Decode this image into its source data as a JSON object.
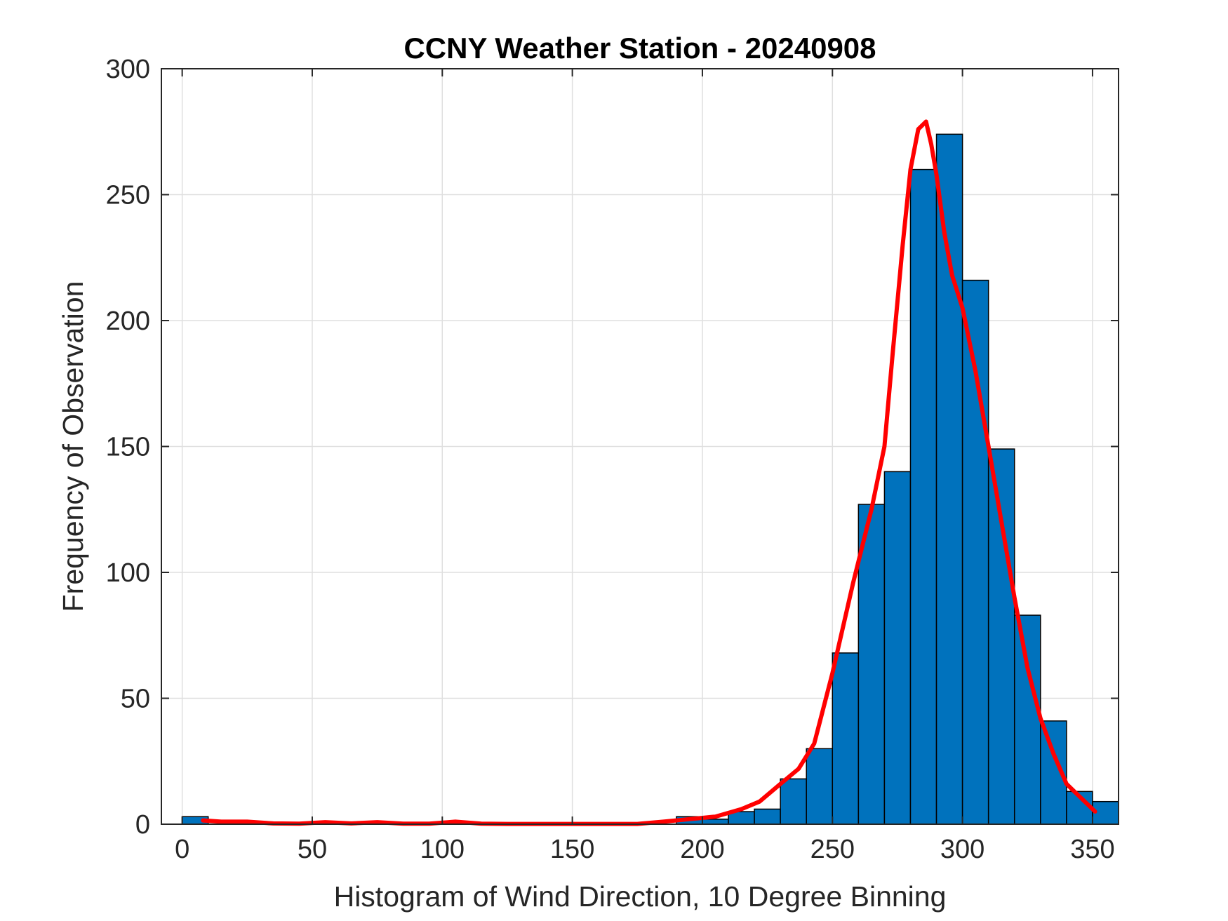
{
  "chart_data": {
    "type": "bar",
    "title": "CCNY Weather Station - 20240908",
    "xlabel": "Histogram of Wind Direction, 10 Degree Binning",
    "ylabel": "Frequency of Observation",
    "xlim": [
      -8,
      360
    ],
    "ylim": [
      0,
      300
    ],
    "xticks": [
      0,
      50,
      100,
      150,
      200,
      250,
      300,
      350
    ],
    "yticks": [
      0,
      50,
      100,
      150,
      200,
      250,
      300
    ],
    "grid": true,
    "bin_width": 10,
    "bar_color": "#0072BD",
    "bar_edge_color": "#000000",
    "bins": [
      {
        "start": 0,
        "count": 3
      },
      {
        "start": 10,
        "count": 0
      },
      {
        "start": 20,
        "count": 0
      },
      {
        "start": 30,
        "count": 0
      },
      {
        "start": 40,
        "count": 0
      },
      {
        "start": 50,
        "count": 0
      },
      {
        "start": 60,
        "count": 0
      },
      {
        "start": 70,
        "count": 0
      },
      {
        "start": 80,
        "count": 0
      },
      {
        "start": 90,
        "count": 0
      },
      {
        "start": 100,
        "count": 0
      },
      {
        "start": 110,
        "count": 0
      },
      {
        "start": 120,
        "count": 0
      },
      {
        "start": 130,
        "count": 0
      },
      {
        "start": 140,
        "count": 0
      },
      {
        "start": 150,
        "count": 0
      },
      {
        "start": 160,
        "count": 0
      },
      {
        "start": 170,
        "count": 0
      },
      {
        "start": 180,
        "count": 0
      },
      {
        "start": 190,
        "count": 3
      },
      {
        "start": 200,
        "count": 2
      },
      {
        "start": 210,
        "count": 5
      },
      {
        "start": 220,
        "count": 6
      },
      {
        "start": 230,
        "count": 18
      },
      {
        "start": 240,
        "count": 30
      },
      {
        "start": 250,
        "count": 68
      },
      {
        "start": 260,
        "count": 127
      },
      {
        "start": 270,
        "count": 140
      },
      {
        "start": 280,
        "count": 260
      },
      {
        "start": 290,
        "count": 274
      },
      {
        "start": 300,
        "count": 216
      },
      {
        "start": 310,
        "count": 149
      },
      {
        "start": 320,
        "count": 83
      },
      {
        "start": 330,
        "count": 41
      },
      {
        "start": 340,
        "count": 13
      },
      {
        "start": 350,
        "count": 9
      }
    ],
    "fit_curve": {
      "color": "#FF0000",
      "x": [
        8,
        15,
        25,
        35,
        45,
        55,
        65,
        75,
        85,
        95,
        105,
        115,
        125,
        135,
        145,
        155,
        165,
        175,
        185,
        195,
        205,
        215,
        222,
        230,
        237,
        243,
        250,
        258,
        265,
        270,
        273,
        277,
        280,
        283,
        286,
        288,
        290,
        293,
        296,
        300,
        305,
        310,
        315,
        320,
        325,
        330,
        335,
        340,
        345,
        351
      ],
      "y": [
        1.5,
        1,
        1,
        0.3,
        0.2,
        0.8,
        0.3,
        0.8,
        0.2,
        0.2,
        1,
        0.2,
        0.1,
        0.1,
        0.1,
        0.1,
        0.1,
        0.1,
        1,
        2,
        3,
        6,
        9,
        16,
        22,
        32,
        60,
        96,
        125,
        150,
        185,
        230,
        260,
        276,
        279,
        270,
        258,
        235,
        218,
        205,
        180,
        150,
        120,
        90,
        62,
        42,
        28,
        16,
        11,
        5
      ]
    }
  }
}
